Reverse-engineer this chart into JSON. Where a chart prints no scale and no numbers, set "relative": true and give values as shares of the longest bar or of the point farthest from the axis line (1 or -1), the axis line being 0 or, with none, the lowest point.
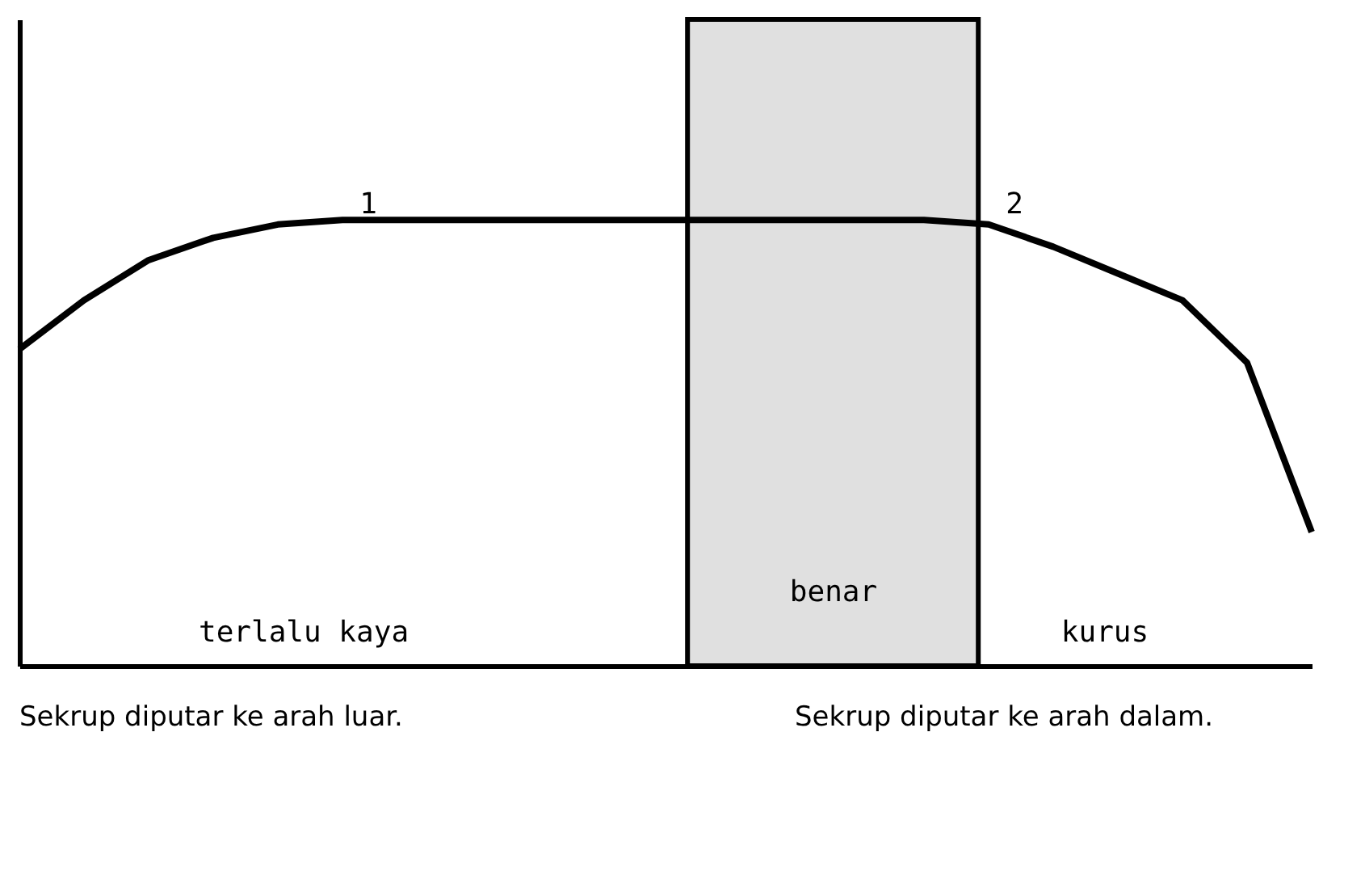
{
  "chart_data": {
    "type": "line",
    "relative": true,
    "tick_labels": false,
    "grid": false,
    "marker": "none",
    "line_style": "solid",
    "categories": [
      null,
      null,
      null,
      null,
      null,
      null,
      null,
      null,
      null,
      null,
      null,
      null,
      null,
      null,
      null,
      null,
      null,
      null,
      null,
      null,
      null
    ],
    "series": [
      {
        "color": "#000000",
        "values": [
          0.71,
          0.82,
          0.91,
          0.96,
          0.99,
          1.0,
          1.0,
          1.0,
          1.0,
          1.0,
          1.0,
          1.0,
          1.0,
          1.0,
          1.0,
          0.99,
          0.94,
          0.88,
          0.82,
          0.68,
          0.3
        ]
      }
    ],
    "annotations": [
      "1",
      "2",
      "terlalu kaya",
      "benar",
      "kurus",
      "Sekrup diputar ke arah luar.",
      "Sekrup diputar ke arah dalam."
    ]
  }
}
